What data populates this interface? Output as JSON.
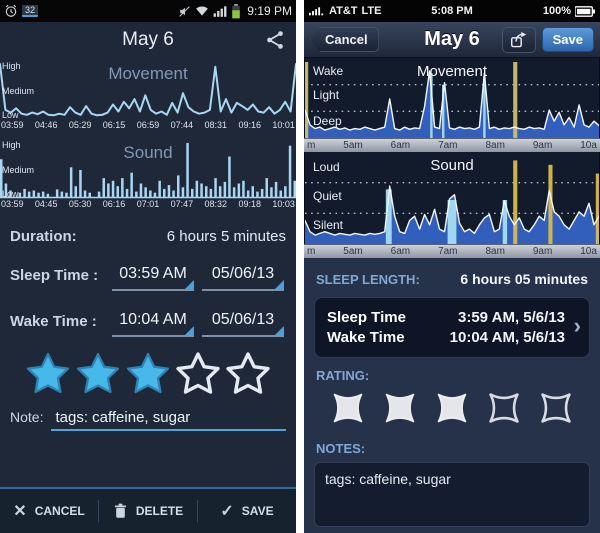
{
  "icons": {
    "chevron": "›",
    "cancel_glyph": "✕",
    "save_glyph": "✓"
  },
  "left_app": {
    "status_bar": {
      "alarm_badge": "32",
      "time": "9:19 PM"
    },
    "header": {
      "title": "May 6"
    },
    "duration_label": "Duration:",
    "duration_value": "6 hours 5 minutes",
    "sleep_time_label": "Sleep Time :",
    "sleep_time_value": "03:59 AM",
    "sleep_date_value": "05/06/13",
    "wake_time_label": "Wake Time :",
    "wake_time_value": "10:04 AM",
    "wake_date_value": "05/06/13",
    "rating": {
      "filled": 3,
      "total": 5,
      "filled_color": "#47b8ea",
      "filled_stroke": "#2f83b4",
      "empty_stroke": "#e3eaf2"
    },
    "note_label": "Note:",
    "note_value": "tags: caffeine, sugar",
    "buttons": {
      "cancel": "CANCEL",
      "delete": "DELETE",
      "save": "SAVE"
    }
  },
  "right_app": {
    "status_bar": {
      "carrier": "AT&T",
      "network": "LTE",
      "time": "5:08 PM",
      "battery": "100%"
    },
    "nav": {
      "cancel": "Cancel",
      "title": "May 6",
      "save": "Save"
    },
    "sleep_length_label": "SLEEP LENGTH:",
    "sleep_length_value": "6 hours 05 minutes",
    "sleep_time_label": "Sleep Time",
    "sleep_time_value": "3:59 AM, 5/6/13",
    "wake_time_label": "Wake Time",
    "wake_time_value": "10:04 AM, 5/6/13",
    "rating_label": "RATING:",
    "rating": {
      "filled": 3,
      "total": 5,
      "filled_color": "#e4e6ea",
      "filled_stroke": "#eceef2",
      "empty_stroke": "#d8dce2"
    },
    "notes_label": "NOTES:",
    "notes_value": "tags: caffeine, sugar"
  },
  "chart_data": [
    {
      "type": "line",
      "title": "Movement",
      "color": "#a9d7f2",
      "ylabels": [
        "High",
        "Medium",
        "Low"
      ],
      "xticks": [
        "03:59",
        "04:46",
        "05:29",
        "06:15",
        "06:59",
        "07:44",
        "08:31",
        "09:16",
        "10:01"
      ],
      "ylim": [
        "Low",
        "High"
      ],
      "values": [
        100,
        15,
        10,
        18,
        8,
        6,
        10,
        7,
        12,
        6,
        5,
        8,
        6,
        20,
        10,
        6,
        22,
        8,
        5,
        6,
        10,
        25,
        12,
        30,
        18,
        35,
        12,
        42,
        15,
        8,
        12,
        6,
        28,
        10,
        46,
        20,
        12,
        8,
        10,
        15,
        95,
        12,
        35,
        10,
        28,
        22,
        15,
        25,
        12,
        10,
        20,
        8,
        15,
        30,
        12,
        100
      ]
    },
    {
      "type": "bars",
      "title": "Sound",
      "color": "#a9d7f2",
      "ylabels": [
        "High",
        "Medium",
        "Low"
      ],
      "xticks": [
        "03:59",
        "04:45",
        "05:30",
        "06:16",
        "07:01",
        "07:47",
        "08:32",
        "09:18",
        "10:03"
      ],
      "ylim": [
        "Low",
        "High"
      ],
      "values": [
        70,
        25,
        12,
        0,
        8,
        15,
        10,
        12,
        8,
        10,
        6,
        0,
        14,
        10,
        8,
        55,
        20,
        50,
        12,
        8,
        0,
        10,
        35,
        25,
        30,
        20,
        35,
        15,
        45,
        10,
        25,
        18,
        12,
        8,
        30,
        15,
        22,
        12,
        40,
        18,
        100,
        15,
        30,
        25,
        20,
        15,
        35,
        20,
        28,
        75,
        18,
        25,
        30,
        12,
        20,
        10,
        15,
        35,
        18,
        28,
        12,
        20,
        95,
        30
      ]
    },
    {
      "type": "area",
      "title": "Movement",
      "color": "#f2f7fd",
      "fill": "#3565c8",
      "grid": true,
      "ylabels": [
        "Wake",
        "Light",
        "Deep"
      ],
      "xticks": [
        "m",
        "5am",
        "6am",
        "7am",
        "8am",
        "9am",
        "10a"
      ],
      "values": [
        35,
        15,
        10,
        12,
        8,
        10,
        12,
        9,
        11,
        8,
        10,
        9,
        12,
        10,
        8,
        10,
        12,
        50,
        10,
        8,
        12,
        9,
        11,
        10,
        40,
        88,
        12,
        10,
        72,
        11,
        9,
        12,
        10,
        11,
        9,
        12,
        85,
        10,
        12,
        9,
        11,
        10,
        12,
        10,
        9,
        12,
        10,
        11,
        9,
        35,
        20,
        32,
        15,
        25,
        12,
        42,
        15,
        12,
        20,
        14
      ],
      "highlights": [
        {
          "x": 0.004,
          "h": 1.0,
          "w": 0.014,
          "color": "#cdbd72"
        },
        {
          "x": 0.43,
          "h": 0.85,
          "w": 0.008,
          "color": "#a6dcf0"
        },
        {
          "x": 0.47,
          "h": 0.7,
          "w": 0.008,
          "color": "#a6dcf0"
        },
        {
          "x": 0.61,
          "h": 0.8,
          "w": 0.008,
          "color": "#a6dcf0"
        },
        {
          "x": 0.715,
          "h": 1.0,
          "w": 0.014,
          "color": "#cdbd72"
        }
      ]
    },
    {
      "type": "area",
      "title": "Sound",
      "color": "#f2f7fd",
      "fill": "#3565c8",
      "grid": true,
      "ylabels": [
        "Loud",
        "Quiet",
        "Silent"
      ],
      "xticks": [
        "m",
        "5am",
        "6am",
        "7am",
        "8am",
        "9am",
        "10a"
      ],
      "values": [
        25,
        12,
        8,
        10,
        12,
        10,
        8,
        10,
        9,
        8,
        10,
        9,
        8,
        10,
        9,
        10,
        12,
        65,
        30,
        12,
        10,
        25,
        30,
        15,
        32,
        20,
        38,
        15,
        12,
        50,
        55,
        22,
        12,
        15,
        10,
        20,
        28,
        32,
        12,
        15,
        48,
        30,
        20,
        28,
        15,
        12,
        20,
        30,
        25,
        60,
        35,
        30,
        20,
        15,
        25,
        35,
        30,
        45,
        20,
        30
      ],
      "highlights": [
        {
          "x": 0.285,
          "h": 0.62,
          "w": 0.02,
          "color": "#a6dcf0"
        },
        {
          "x": 0.5,
          "h": 0.5,
          "w": 0.03,
          "color": "#a6dcf0"
        },
        {
          "x": 0.68,
          "h": 0.5,
          "w": 0.015,
          "color": "#a6dcf0"
        },
        {
          "x": 0.715,
          "h": 0.95,
          "w": 0.014,
          "color": "#d9b84f"
        },
        {
          "x": 0.835,
          "h": 0.9,
          "w": 0.014,
          "color": "#d9b84f"
        },
        {
          "x": 0.995,
          "h": 0.8,
          "w": 0.012,
          "color": "#d9b84f"
        }
      ]
    }
  ]
}
